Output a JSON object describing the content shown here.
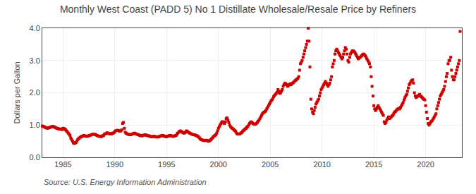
{
  "chart_data": {
    "type": "scatter",
    "title": "Monthly West Coast (PADD 5) No 1 Distillate Wholesale/Resale Price by Refiners",
    "ylabel": "Dollars per Gallon",
    "annotations": [
      "Source: U.S. Energy Information Administration"
    ],
    "color": "#cc0000",
    "marker": "square",
    "grid": true,
    "xlim": [
      1983.0,
      2023.5
    ],
    "xticks": [
      1985,
      1990,
      1995,
      2000,
      2005,
      2010,
      2015,
      2020
    ],
    "ylim": [
      0.0,
      4.0
    ],
    "yticks": [
      {
        "value": 0.0,
        "label": "0.0"
      },
      {
        "value": 1.0,
        "label": "1.0"
      },
      {
        "value": 2.0,
        "label": "2.0"
      },
      {
        "value": 3.0,
        "label": "3.0"
      },
      {
        "value": 4.0,
        "label": "4.0"
      }
    ],
    "x": [
      1983.0,
      1983.08,
      1983.17,
      1983.25,
      1983.33,
      1983.42,
      1983.5,
      1983.58,
      1983.67,
      1983.75,
      1983.83,
      1983.92,
      1984.0,
      1984.08,
      1984.17,
      1984.25,
      1984.33,
      1984.42,
      1984.5,
      1984.58,
      1984.67,
      1984.75,
      1984.83,
      1984.92,
      1985.0,
      1985.08,
      1985.17,
      1985.25,
      1985.33,
      1985.42,
      1985.5,
      1985.58,
      1985.67,
      1985.75,
      1985.83,
      1985.92,
      1986.0,
      1986.08,
      1986.17,
      1986.25,
      1986.33,
      1986.42,
      1986.5,
      1986.58,
      1986.67,
      1986.75,
      1986.83,
      1986.92,
      1987.0,
      1987.08,
      1987.17,
      1987.25,
      1987.33,
      1987.42,
      1987.5,
      1987.58,
      1987.67,
      1987.75,
      1987.83,
      1987.92,
      1988.0,
      1988.08,
      1988.17,
      1988.25,
      1988.33,
      1988.42,
      1988.5,
      1988.58,
      1988.67,
      1988.75,
      1988.83,
      1988.92,
      1989.0,
      1989.08,
      1989.17,
      1989.25,
      1989.33,
      1989.42,
      1989.5,
      1989.58,
      1989.67,
      1989.75,
      1989.83,
      1989.92,
      1990.0,
      1990.08,
      1990.17,
      1990.25,
      1990.33,
      1990.42,
      1990.5,
      1990.58,
      1990.67,
      1990.75,
      1990.83,
      1990.92,
      1991.0,
      1991.08,
      1991.17,
      1991.25,
      1991.33,
      1991.42,
      1991.5,
      1991.58,
      1991.67,
      1991.75,
      1991.83,
      1991.92,
      1992.0,
      1992.08,
      1992.17,
      1992.25,
      1992.33,
      1992.42,
      1992.5,
      1992.58,
      1992.67,
      1992.75,
      1992.83,
      1992.92,
      1993.0,
      1993.08,
      1993.17,
      1993.25,
      1993.33,
      1993.42,
      1993.5,
      1993.58,
      1993.67,
      1993.75,
      1993.83,
      1993.92,
      1994.0,
      1994.08,
      1994.17,
      1994.25,
      1994.33,
      1994.42,
      1994.5,
      1994.58,
      1994.67,
      1994.75,
      1994.83,
      1994.92,
      1995.0,
      1995.08,
      1995.17,
      1995.25,
      1995.33,
      1995.42,
      1995.5,
      1995.58,
      1995.67,
      1995.75,
      1995.83,
      1995.92,
      1996.0,
      1996.08,
      1996.17,
      1996.25,
      1996.33,
      1996.42,
      1996.5,
      1996.58,
      1996.67,
      1996.75,
      1996.83,
      1996.92,
      1997.0,
      1997.08,
      1997.17,
      1997.25,
      1997.33,
      1997.42,
      1997.5,
      1997.58,
      1997.67,
      1997.75,
      1997.83,
      1997.92,
      1998.0,
      1998.08,
      1998.17,
      1998.25,
      1998.33,
      1998.42,
      1998.5,
      1998.58,
      1998.67,
      1998.75,
      1998.83,
      1998.92,
      1999.0,
      1999.08,
      1999.17,
      1999.25,
      1999.33,
      1999.42,
      1999.5,
      1999.58,
      1999.67,
      1999.75,
      1999.83,
      1999.92,
      2000.0,
      2000.08,
      2000.17,
      2000.25,
      2000.33,
      2000.42,
      2000.5,
      2000.58,
      2000.67,
      2000.75,
      2000.83,
      2000.92,
      2001.0,
      2001.08,
      2001.17,
      2001.25,
      2001.33,
      2001.42,
      2001.5,
      2001.58,
      2001.67,
      2001.75,
      2001.83,
      2001.92,
      2002.0,
      2002.08,
      2002.17,
      2002.25,
      2002.33,
      2002.42,
      2002.5,
      2002.58,
      2002.67,
      2002.75,
      2002.83,
      2002.92,
      2003.0,
      2003.08,
      2003.17,
      2003.25,
      2003.33,
      2003.42,
      2003.5,
      2003.58,
      2003.67,
      2003.75,
      2003.83,
      2003.92,
      2004.0,
      2004.08,
      2004.17,
      2004.25,
      2004.33,
      2004.42,
      2004.5,
      2004.58,
      2004.67,
      2004.75,
      2004.83,
      2004.92,
      2005.0,
      2005.08,
      2005.17,
      2005.25,
      2005.33,
      2005.42,
      2005.5,
      2005.58,
      2005.67,
      2005.75,
      2005.83,
      2005.92,
      2006.0,
      2006.08,
      2006.17,
      2006.25,
      2006.33,
      2006.42,
      2006.5,
      2006.58,
      2006.67,
      2006.75,
      2006.83,
      2006.92,
      2007.0,
      2007.08,
      2007.17,
      2007.25,
      2007.33,
      2007.42,
      2007.5,
      2007.58,
      2007.67,
      2007.75,
      2007.83,
      2007.92,
      2008.0,
      2008.08,
      2008.17,
      2008.25,
      2008.33,
      2008.42,
      2008.5,
      2008.58,
      2008.67,
      2008.75,
      2008.83,
      2008.92,
      2009.0,
      2009.08,
      2009.17,
      2009.25,
      2009.33,
      2009.42,
      2009.5,
      2009.58,
      2009.67,
      2009.75,
      2009.83,
      2009.92,
      2010.0,
      2010.08,
      2010.17,
      2010.25,
      2010.33,
      2010.42,
      2010.5,
      2010.58,
      2010.67,
      2010.75,
      2010.83,
      2010.92,
      2011.0,
      2011.08,
      2011.17,
      2011.25,
      2011.33,
      2011.42,
      2011.5,
      2011.58,
      2011.67,
      2011.75,
      2011.83,
      2011.92,
      2012.0,
      2012.08,
      2012.17,
      2012.25,
      2012.33,
      2012.42,
      2012.5,
      2012.58,
      2012.67,
      2012.75,
      2012.83,
      2012.92,
      2013.0,
      2013.08,
      2013.17,
      2013.25,
      2013.33,
      2013.42,
      2013.5,
      2013.58,
      2013.67,
      2013.75,
      2013.83,
      2013.92,
      2014.0,
      2014.08,
      2014.17,
      2014.25,
      2014.33,
      2014.42,
      2014.5,
      2014.58,
      2014.67,
      2014.75,
      2014.83,
      2014.92,
      2015.0,
      2015.08,
      2015.17,
      2015.25,
      2015.33,
      2015.42,
      2015.5,
      2015.58,
      2015.67,
      2015.75,
      2015.83,
      2015.92,
      2016.0,
      2016.08,
      2016.17,
      2016.25,
      2016.33,
      2016.42,
      2016.5,
      2016.58,
      2016.67,
      2016.75,
      2016.83,
      2016.92,
      2017.0,
      2017.08,
      2017.17,
      2017.25,
      2017.33,
      2017.42,
      2017.5,
      2017.58,
      2017.67,
      2017.75,
      2017.83,
      2017.92,
      2018.0,
      2018.08,
      2018.17,
      2018.25,
      2018.33,
      2018.42,
      2018.5,
      2018.58,
      2018.67,
      2018.75,
      2018.83,
      2018.92,
      2019.0,
      2019.08,
      2019.17,
      2019.25,
      2019.33,
      2019.42,
      2019.5,
      2019.58,
      2019.67,
      2019.75,
      2019.83,
      2019.92,
      2020.0,
      2020.08,
      2020.17,
      2020.25,
      2020.33,
      2020.42,
      2020.5,
      2020.58,
      2020.67,
      2020.75,
      2020.83,
      2020.92,
      2021.0,
      2021.08,
      2021.17,
      2021.25,
      2021.33,
      2021.42,
      2021.5,
      2021.58,
      2021.67,
      2021.75,
      2021.83,
      2021.92,
      2022.0,
      2022.08,
      2022.17,
      2022.25,
      2022.33,
      2022.42,
      2022.5,
      2022.58,
      2022.67,
      2022.75,
      2022.83,
      2022.92,
      2023.0,
      2023.08,
      2023.17,
      2023.25,
      2023.33
    ],
    "values": [
      0.97,
      0.96,
      0.95,
      0.93,
      0.92,
      0.91,
      0.9,
      0.91,
      0.92,
      0.93,
      0.94,
      0.95,
      0.96,
      0.95,
      0.94,
      0.92,
      0.91,
      0.9,
      0.89,
      0.88,
      0.87,
      0.88,
      0.87,
      0.86,
      0.9,
      0.89,
      0.88,
      0.85,
      0.82,
      0.79,
      0.75,
      0.72,
      0.68,
      0.6,
      0.55,
      0.5,
      0.45,
      0.43,
      0.44,
      0.46,
      0.5,
      0.55,
      0.58,
      0.6,
      0.62,
      0.64,
      0.65,
      0.66,
      0.68,
      0.67,
      0.66,
      0.65,
      0.65,
      0.66,
      0.67,
      0.68,
      0.69,
      0.7,
      0.71,
      0.72,
      0.72,
      0.71,
      0.7,
      0.68,
      0.67,
      0.66,
      0.65,
      0.65,
      0.64,
      0.65,
      0.67,
      0.68,
      0.72,
      0.73,
      0.74,
      0.76,
      0.75,
      0.74,
      0.73,
      0.72,
      0.73,
      0.74,
      0.75,
      0.76,
      0.8,
      0.82,
      0.83,
      0.84,
      0.83,
      0.82,
      0.81,
      0.82,
      0.85,
      1.05,
      1.08,
      0.9,
      0.78,
      0.75,
      0.73,
      0.72,
      0.71,
      0.7,
      0.7,
      0.71,
      0.72,
      0.73,
      0.74,
      0.75,
      0.73,
      0.72,
      0.71,
      0.7,
      0.69,
      0.68,
      0.67,
      0.67,
      0.67,
      0.68,
      0.69,
      0.7,
      0.69,
      0.68,
      0.67,
      0.67,
      0.66,
      0.65,
      0.64,
      0.64,
      0.64,
      0.65,
      0.65,
      0.64,
      0.63,
      0.63,
      0.63,
      0.64,
      0.65,
      0.66,
      0.67,
      0.68,
      0.67,
      0.66,
      0.65,
      0.64,
      0.64,
      0.65,
      0.66,
      0.67,
      0.68,
      0.67,
      0.66,
      0.65,
      0.65,
      0.66,
      0.67,
      0.68,
      0.72,
      0.75,
      0.78,
      0.8,
      0.82,
      0.8,
      0.78,
      0.76,
      0.75,
      0.76,
      0.78,
      0.82,
      0.8,
      0.78,
      0.76,
      0.75,
      0.73,
      0.72,
      0.71,
      0.7,
      0.7,
      0.69,
      0.68,
      0.67,
      0.65,
      0.63,
      0.6,
      0.57,
      0.55,
      0.54,
      0.53,
      0.52,
      0.52,
      0.52,
      0.53,
      0.52,
      0.5,
      0.5,
      0.52,
      0.54,
      0.57,
      0.6,
      0.63,
      0.66,
      0.68,
      0.7,
      0.75,
      0.82,
      0.9,
      0.95,
      1.0,
      1.05,
      1.1,
      1.1,
      1.08,
      1.05,
      1.1,
      1.2,
      1.22,
      1.15,
      1.08,
      1.0,
      0.95,
      0.92,
      0.9,
      0.88,
      0.85,
      0.83,
      0.8,
      0.75,
      0.72,
      0.72,
      0.72,
      0.73,
      0.75,
      0.77,
      0.8,
      0.83,
      0.85,
      0.88,
      0.9,
      0.93,
      0.96,
      1.0,
      1.05,
      1.08,
      1.1,
      1.08,
      1.05,
      1.03,
      1.02,
      1.03,
      1.05,
      1.08,
      1.12,
      1.15,
      1.2,
      1.25,
      1.3,
      1.35,
      1.38,
      1.4,
      1.42,
      1.45,
      1.5,
      1.55,
      1.6,
      1.65,
      1.7,
      1.75,
      1.78,
      1.82,
      1.88,
      1.92,
      1.95,
      1.98,
      2.02,
      2.1,
      2.05,
      1.98,
      2.0,
      2.05,
      2.1,
      2.2,
      2.25,
      2.3,
      2.28,
      2.25,
      2.2,
      2.22,
      2.25,
      2.28,
      2.25,
      2.28,
      2.3,
      2.32,
      2.35,
      2.38,
      2.4,
      2.42,
      2.45,
      2.5,
      2.7,
      2.9,
      2.95,
      3.0,
      3.1,
      3.2,
      3.3,
      3.4,
      3.5,
      3.6,
      4.0,
      3.6,
      2.8,
      1.8,
      1.5,
      1.4,
      1.35,
      1.45,
      1.55,
      1.65,
      1.7,
      1.75,
      1.8,
      1.9,
      2.0,
      2.1,
      2.15,
      2.2,
      2.25,
      2.3,
      2.35,
      2.3,
      2.25,
      2.2,
      2.25,
      2.3,
      2.4,
      2.5,
      2.8,
      2.9,
      3.0,
      3.2,
      3.3,
      3.35,
      3.3,
      3.25,
      3.2,
      3.15,
      3.1,
      3.05,
      3.1,
      3.2,
      3.3,
      3.4,
      3.35,
      3.2,
      3.0,
      2.95,
      3.1,
      3.2,
      3.25,
      3.3,
      3.3,
      3.28,
      3.25,
      3.2,
      3.15,
      3.1,
      3.05,
      3.08,
      3.1,
      3.12,
      3.15,
      3.18,
      3.2,
      3.18,
      3.15,
      3.1,
      3.05,
      3.0,
      2.95,
      2.9,
      2.8,
      2.5,
      2.2,
      1.9,
      1.6,
      1.5,
      1.45,
      1.5,
      1.55,
      1.6,
      1.55,
      1.5,
      1.45,
      1.4,
      1.35,
      1.3,
      1.1,
      1.05,
      1.08,
      1.15,
      1.2,
      1.25,
      1.2,
      1.22,
      1.25,
      1.28,
      1.3,
      1.35,
      1.4,
      1.42,
      1.45,
      1.48,
      1.5,
      1.52,
      1.5,
      1.55,
      1.6,
      1.65,
      1.7,
      1.78,
      1.85,
      1.9,
      1.95,
      2.05,
      2.15,
      2.25,
      2.3,
      2.35,
      2.38,
      2.4,
      2.3,
      2.0,
      1.9,
      1.85,
      1.88,
      1.9,
      1.92,
      1.95,
      1.9,
      1.88,
      1.85,
      1.82,
      1.8,
      1.78,
      1.6,
      1.4,
      1.2,
      1.05,
      1.0,
      1.05,
      1.1,
      1.12,
      1.15,
      1.2,
      1.25,
      1.3,
      1.35,
      1.5,
      1.6,
      1.7,
      1.8,
      1.9,
      1.95,
      2.0,
      2.05,
      2.1,
      2.2,
      2.35,
      2.5,
      2.6,
      2.9,
      3.0,
      3.0,
      3.1,
      2.7,
      2.5,
      2.4,
      2.4,
      2.5,
      2.6,
      2.7,
      2.8,
      2.9,
      3.0,
      3.9
    ]
  }
}
